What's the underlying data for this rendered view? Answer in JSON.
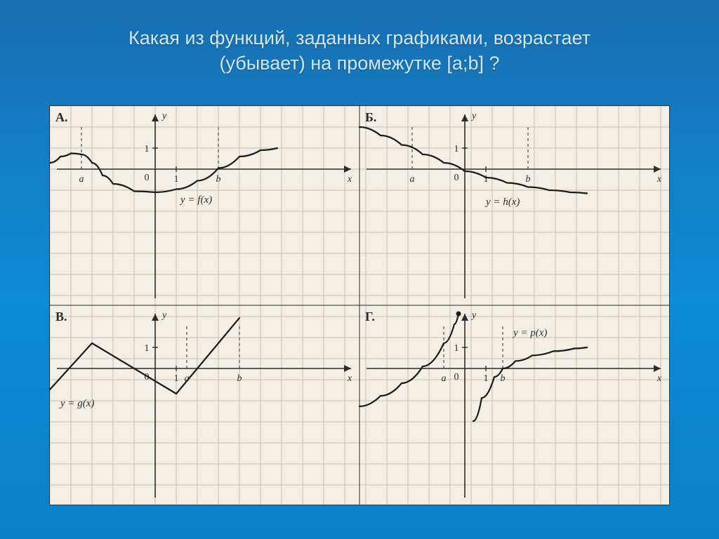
{
  "title_line1": "Какая из функций, заданных графиками, возрастает",
  "title_line2": "(убывает) на промежутке [a;b] ?",
  "labels": {
    "A": "А.",
    "B": "Б.",
    "V": "В.",
    "G": "Г.",
    "x": "x",
    "y": "y"
  },
  "curves": {
    "A": {
      "eq": "y = f(x)"
    },
    "B": {
      "eq": "y = h(x)"
    },
    "V": {
      "eq": "y = g(x)"
    },
    "G": {
      "eq": "y = p(x)"
    }
  },
  "style": {
    "paper": "#f3efe6",
    "grid": "#b9b2a0",
    "axis": "#2b2b2b",
    "curve": "#1a1a1a",
    "curve_width": 2.2,
    "axis_width": 1.6,
    "label_font": 18,
    "eq_font": 15,
    "tick_font": 14,
    "cell": 30
  },
  "axis_labels": {
    "A": {
      "zero": "0",
      "one_x": "1",
      "one_y": "1",
      "a": "a",
      "b": "b"
    },
    "B": {
      "zero": "0",
      "one_x": "1",
      "one_y": "1",
      "a": "a",
      "b": "b"
    },
    "V": {
      "zero": "0",
      "one_x": "1",
      "one_y": "1",
      "a": "a",
      "b": "b"
    },
    "G": {
      "zero": "0",
      "one_x": "1",
      "one_y": "1",
      "a": "a",
      "b": "b"
    }
  },
  "plots": {
    "A": {
      "origin_cell": [
        5,
        3
      ],
      "a_cell": -3.5,
      "b_cell": 3,
      "path_cells": [
        [
          -5,
          0.3
        ],
        [
          -4.5,
          0.6
        ],
        [
          -4,
          0.75
        ],
        [
          -3.5,
          0.7
        ],
        [
          -3,
          0.3
        ],
        [
          -2.5,
          -0.3
        ],
        [
          -2,
          -0.7
        ],
        [
          -1,
          -1.05
        ],
        [
          0,
          -1.1
        ],
        [
          1,
          -0.95
        ],
        [
          2,
          -0.55
        ],
        [
          3,
          0.05
        ],
        [
          4,
          0.6
        ],
        [
          5,
          0.9
        ],
        [
          5.8,
          1.0
        ]
      ]
    },
    "B": {
      "origin_cell": [
        5,
        3
      ],
      "a_cell": -2.5,
      "b_cell": 3,
      "path_cells": [
        [
          -5,
          2.0
        ],
        [
          -4,
          1.6
        ],
        [
          -3,
          1.15
        ],
        [
          -2,
          0.7
        ],
        [
          -1,
          0.3
        ],
        [
          0,
          -0.1
        ],
        [
          1,
          -0.4
        ],
        [
          2,
          -0.65
        ],
        [
          3,
          -0.85
        ],
        [
          4,
          -1.0
        ],
        [
          5,
          -1.1
        ],
        [
          5.8,
          -1.15
        ]
      ]
    },
    "V": {
      "origin_cell": [
        5,
        3
      ],
      "a_cell": 1.5,
      "b_cell": 4,
      "segments": [
        [
          [
            -5,
            -1.0
          ],
          [
            -3,
            1.2
          ]
        ],
        [
          [
            -3,
            1.2
          ],
          [
            1,
            -1.2
          ]
        ],
        [
          [
            1,
            -1.2
          ],
          [
            4,
            2.4
          ]
        ]
      ]
    },
    "G": {
      "origin_cell": [
        5,
        3
      ],
      "a_cell": -1,
      "b_cell": 1.8,
      "path1_cells": [
        [
          -5,
          -1.8
        ],
        [
          -4,
          -1.3
        ],
        [
          -3,
          -0.7
        ],
        [
          -2,
          0.1
        ],
        [
          -1,
          1.2
        ],
        [
          -0.5,
          2.1
        ],
        [
          -0.3,
          2.6
        ]
      ],
      "path2_cells": [
        [
          0.4,
          -2.5
        ],
        [
          0.8,
          -1.4
        ],
        [
          1.4,
          -0.4
        ],
        [
          1.8,
          0.0
        ],
        [
          2.4,
          0.35
        ],
        [
          3.2,
          0.62
        ],
        [
          4.2,
          0.82
        ],
        [
          5.2,
          0.95
        ],
        [
          5.8,
          1.0
        ]
      ],
      "dot_cell": [
        -0.3,
        2.6
      ]
    }
  }
}
